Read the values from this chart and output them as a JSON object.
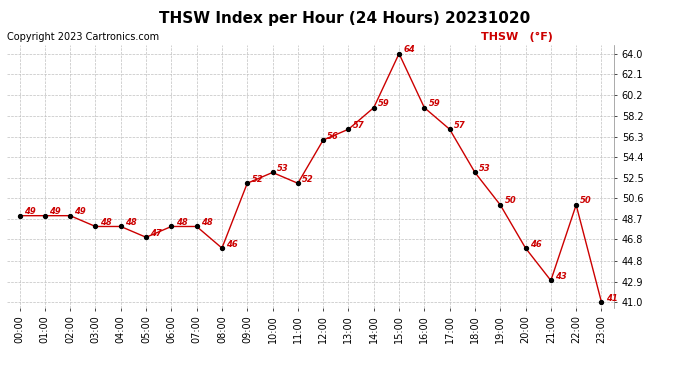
{
  "title": "THSW Index per Hour (24 Hours) 20231020",
  "copyright": "Copyright 2023 Cartronics.com",
  "legend_label": "THSW  (°F)",
  "hours": [
    "00:00",
    "01:00",
    "02:00",
    "03:00",
    "04:00",
    "05:00",
    "06:00",
    "07:00",
    "08:00",
    "09:00",
    "10:00",
    "11:00",
    "12:00",
    "13:00",
    "14:00",
    "15:00",
    "16:00",
    "17:00",
    "18:00",
    "19:00",
    "20:00",
    "21:00",
    "22:00",
    "23:00"
  ],
  "values": [
    49,
    49,
    49,
    48,
    48,
    47,
    48,
    48,
    46,
    52,
    53,
    52,
    56,
    57,
    59,
    64,
    59,
    57,
    53,
    50,
    46,
    43,
    50,
    41
  ],
  "ylim_min": 41.0,
  "ylim_max": 64.0,
  "yticks": [
    41.0,
    42.9,
    44.8,
    46.8,
    48.7,
    50.6,
    52.5,
    54.4,
    56.3,
    58.2,
    60.2,
    62.1,
    64.0
  ],
  "line_color": "#cc0000",
  "marker_color": "#000000",
  "annotation_color": "#cc0000",
  "background_color": "#ffffff",
  "grid_color": "#c0c0c0",
  "title_fontsize": 11,
  "copyright_fontsize": 7,
  "legend_fontsize": 8,
  "annotation_fontsize": 6,
  "tick_fontsize": 7
}
